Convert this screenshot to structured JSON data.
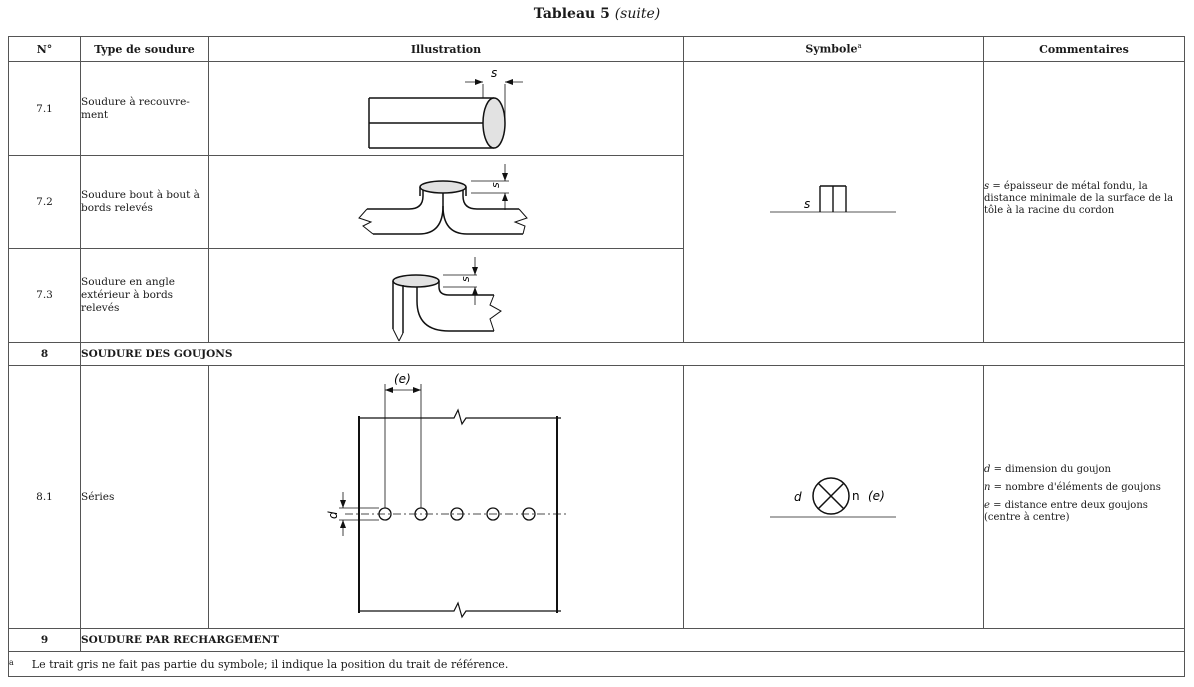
{
  "title": {
    "main": "Tableau 5",
    "sub": "(suite)"
  },
  "headers": {
    "num": "N°",
    "type": "Type de soudure",
    "illustration": "Illustration",
    "symbol": "Symbole",
    "symbol_sup": "a",
    "comments": "Commentaires"
  },
  "rows": [
    {
      "num": "7.1",
      "type": "Soudure à recouvre-ment",
      "label_s": "s"
    },
    {
      "num": "7.2",
      "type": "Soudure bout à bout à bords relevés",
      "label_s": "s"
    },
    {
      "num": "7.3",
      "type": "Soudure en angle extérieur à bords relevés",
      "label_s": "s"
    }
  ],
  "group7": {
    "symbol_letter": "s",
    "comment_var": "s",
    "comment_text": " = épaisseur de métal fondu, la distance minimale de la surface de la tôle à la racine du cordon"
  },
  "section8": {
    "num": "8",
    "label": "SOUDURE DES GOUJONS"
  },
  "row81": {
    "num": "8.1",
    "type": "Séries",
    "label_e": "(e)",
    "label_d": "d",
    "symbol_d": "d",
    "symbol_n": "n",
    "symbol_e": "(e)",
    "comments": [
      {
        "var": "d",
        "text": " = dimension du goujon"
      },
      {
        "var": "n",
        "text": " = nombre d'éléments de goujons"
      },
      {
        "var": "e",
        "text": " = distance entre deux goujons (centre à centre)"
      }
    ]
  },
  "section9": {
    "num": "9",
    "label": "SOUDURE PAR RECHARGEMENT"
  },
  "footnote": {
    "mark": "a",
    "text": "Le trait gris ne fait pas partie du symbole; il indique la position du trait de référence."
  }
}
